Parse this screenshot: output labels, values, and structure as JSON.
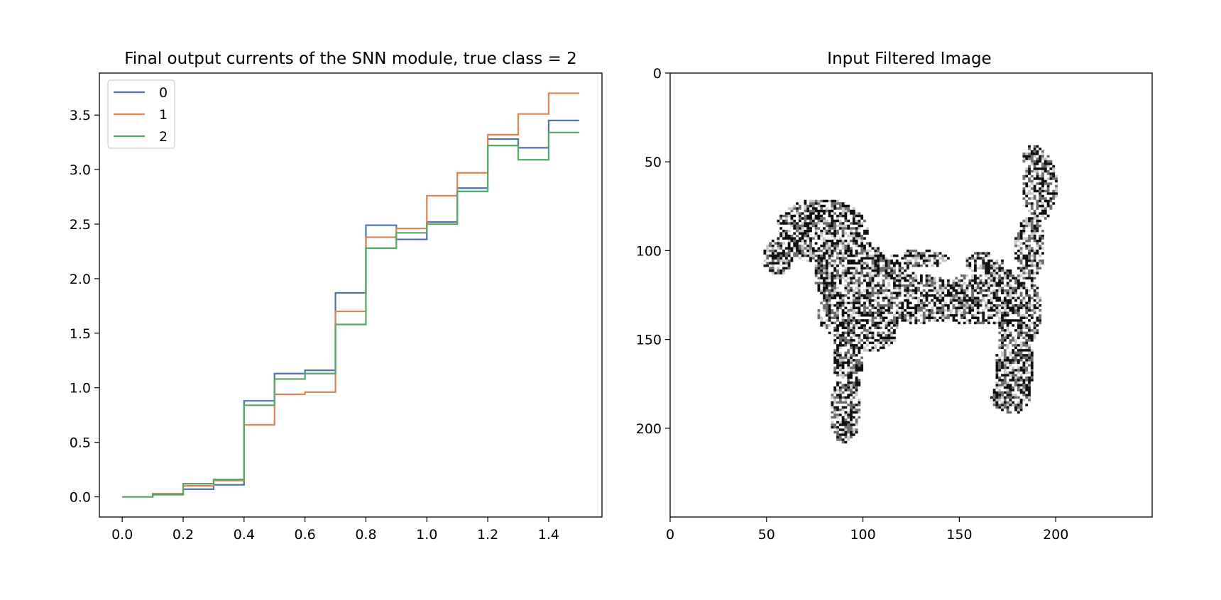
{
  "chart_data": [
    {
      "type": "line",
      "step": "post",
      "title": "Final output currents of the SNN module, true class = 2",
      "xlabel": "",
      "ylabel": "",
      "x": [
        0.0,
        0.1,
        0.2,
        0.3,
        0.4,
        0.5,
        0.6,
        0.7,
        0.8,
        0.9,
        1.0,
        1.1,
        1.2,
        1.3,
        1.4,
        1.5
      ],
      "series": [
        {
          "name": "0",
          "color": "#4c72b0",
          "values": [
            0.0,
            0.02,
            0.07,
            0.11,
            0.88,
            1.13,
            1.16,
            1.87,
            2.49,
            2.36,
            2.52,
            2.83,
            3.28,
            3.2,
            3.45,
            3.45
          ]
        },
        {
          "name": "1",
          "color": "#dd8452",
          "values": [
            0.0,
            0.03,
            0.1,
            0.15,
            0.66,
            0.94,
            0.96,
            1.7,
            2.38,
            2.46,
            2.76,
            2.97,
            3.32,
            3.51,
            3.7,
            3.7
          ]
        },
        {
          "name": "2",
          "color": "#55a868",
          "values": [
            0.0,
            0.02,
            0.12,
            0.16,
            0.84,
            1.08,
            1.13,
            1.58,
            2.28,
            2.42,
            2.5,
            2.8,
            3.22,
            3.09,
            3.34,
            3.34
          ]
        }
      ],
      "xlim": [
        -0.075,
        1.575
      ],
      "ylim": [
        -0.185,
        3.885
      ],
      "xticks": [
        "0.0",
        "0.2",
        "0.4",
        "0.6",
        "0.8",
        "1.0",
        "1.2",
        "1.4"
      ],
      "yticks": [
        "0.0",
        "0.5",
        "1.0",
        "1.5",
        "2.0",
        "2.5",
        "3.0",
        "3.5"
      ],
      "legend": "top-left",
      "grid": false
    },
    {
      "type": "image",
      "title": "Input Filtered Image",
      "colormap": "gray-inverted",
      "xlim": [
        0,
        250
      ],
      "ylim": [
        250,
        0
      ],
      "xticks": [
        "0",
        "50",
        "100",
        "150",
        "200"
      ],
      "yticks": [
        "0",
        "50",
        "100",
        "150",
        "200"
      ],
      "subject": "poodle silhouette edge map"
    }
  ]
}
